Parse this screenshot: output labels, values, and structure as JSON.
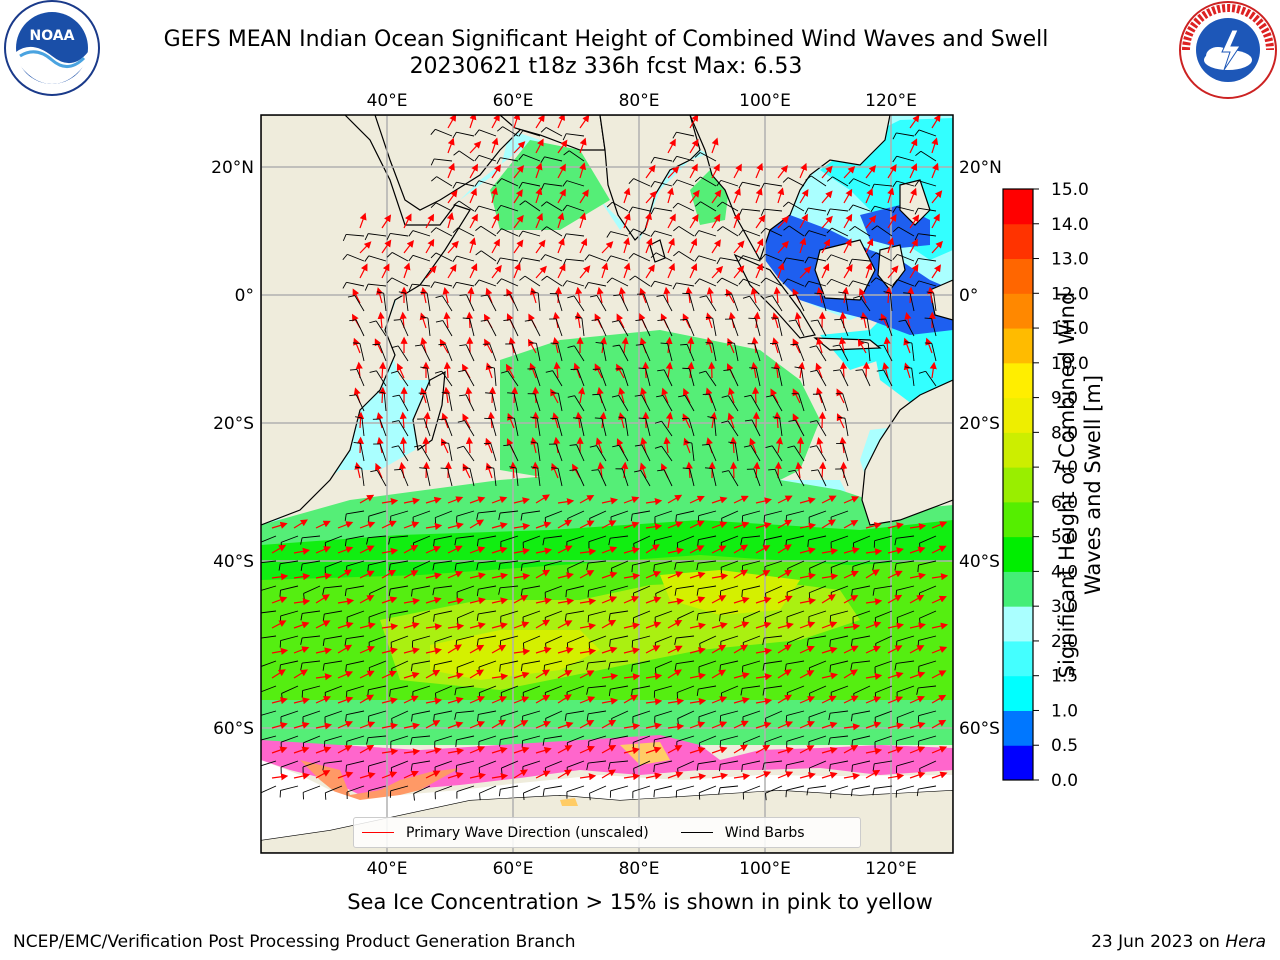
{
  "title": {
    "line1": "GEFS MEAN Indian Ocean Significant Height of Combined Wind Waves and Swell",
    "line2": "20230621 t18z 336h fcst   Max: 6.53"
  },
  "logos": {
    "left": "noaa-logo",
    "left_text": "NOAA",
    "right": "nws-logo"
  },
  "map": {
    "lon_ticks": [
      "40°E",
      "60°E",
      "80°E",
      "100°E",
      "120°E"
    ],
    "lat_ticks_left": [
      "20°N",
      "0°",
      "20°S",
      "40°S",
      "60°S"
    ],
    "lat_ticks_right": [
      "20°N",
      "0°",
      "20°S",
      "40°S",
      "60°S"
    ],
    "land_color": "#efecdc",
    "ocean_colors": {
      "very_low": "#1e5ff0",
      "low": "#33ffff",
      "mid_low": "#aaffff",
      "mid": "#55ee77",
      "mid_high": "#11ee11",
      "high": "#55ee11",
      "higher": "#aaf011",
      "peak": "#d4f000"
    },
    "arrow_color": "#ff0000",
    "barb_color": "#000000"
  },
  "colorbar": {
    "title": "Significant Height of Combined Wind Waves and Swell [m]",
    "ticks": [
      "0.0",
      "0.5",
      "1.0",
      "1.5",
      "2.0",
      "3.0",
      "4.0",
      "5.0",
      "6.0",
      "7.0",
      "8.0",
      "9.0",
      "10.0",
      "11.0",
      "12.0",
      "13.0",
      "14.0",
      "15.0"
    ],
    "colors": [
      "#0000ff",
      "#0077ff",
      "#00ffff",
      "#44ffff",
      "#aaffff",
      "#44ee77",
      "#00ee00",
      "#55ee00",
      "#99ee00",
      "#ccee00",
      "#eeee00",
      "#ffee00",
      "#ffbb00",
      "#ff8800",
      "#ff6600",
      "#ff3300",
      "#ff0000"
    ]
  },
  "legend": {
    "wave_direction": "Primary Wave Direction (unscaled)",
    "wind_barbs": "Wind Barbs"
  },
  "footnote": "Sea Ice Concentration > 15% is shown in pink to yellow",
  "credit": "NCEP/EMC/Verification Post Processing Product Generation Branch",
  "datestamp": {
    "date": "23 Jun 2023 on ",
    "host": "Hera"
  }
}
